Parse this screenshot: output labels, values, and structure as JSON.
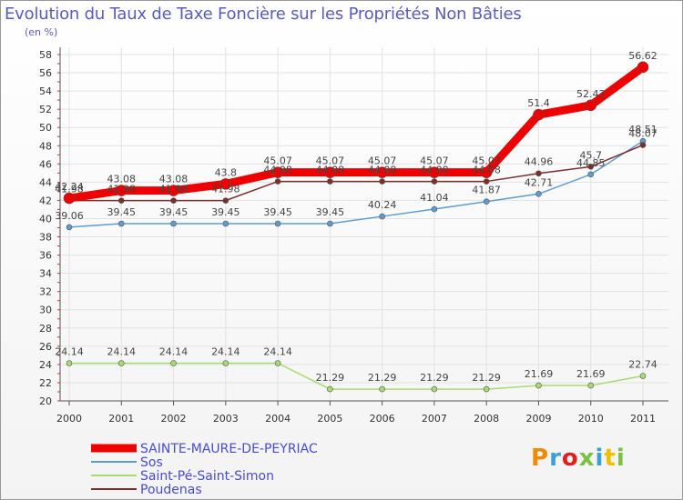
{
  "title": "Evolution du Taux de Taxe Foncière sur les Propriétés Non Bâties",
  "unit": "(en %)",
  "logo": {
    "text": "Proxiti",
    "colors": [
      "#f08a00",
      "#3aa0d8",
      "#e02020",
      "#7ac142",
      "#3aa0d8",
      "#f0c000",
      "#7ac142"
    ]
  },
  "chart_data": {
    "type": "line",
    "x": [
      "2000",
      "2001",
      "2002",
      "2003",
      "2004",
      "2005",
      "2006",
      "2007",
      "2008",
      "2009",
      "2010",
      "2011"
    ],
    "ylim": [
      20,
      58
    ],
    "yticks": [
      20,
      22,
      24,
      26,
      28,
      30,
      32,
      34,
      36,
      38,
      40,
      42,
      44,
      46,
      48,
      50,
      52,
      54,
      56,
      58
    ],
    "grid": true,
    "legend_position": "bottom-left",
    "series": [
      {
        "name": "SAINTE-MAURE-DE-PEYRIAC",
        "color": "#ee0000",
        "width": 9,
        "values": [
          42.24,
          43.08,
          43.08,
          43.8,
          45.07,
          45.07,
          45.07,
          45.07,
          45.07,
          51.4,
          52.43,
          56.62
        ],
        "labels": [
          "42.24",
          "43.08",
          "43.08",
          "43.8",
          "45.07",
          "45.07",
          "45.07",
          "45.07",
          "45.07",
          "51.4",
          "52.43",
          "56.62"
        ]
      },
      {
        "name": "Sos",
        "color": "#5e9ccf",
        "width": 1.5,
        "values": [
          39.06,
          39.45,
          39.45,
          39.45,
          39.45,
          39.45,
          40.24,
          41.04,
          41.87,
          42.71,
          44.85,
          48.51
        ],
        "labels": [
          "39.06",
          "39.45",
          "39.45",
          "39.45",
          "39.45",
          "39.45",
          "40.24",
          "41.04",
          "41.87",
          "42.71",
          "44.85",
          "48.51"
        ]
      },
      {
        "name": "Saint-Pé-Saint-Simon",
        "color": "#a6db70",
        "width": 1.5,
        "values": [
          24.14,
          24.14,
          24.14,
          24.14,
          24.14,
          21.29,
          21.29,
          21.29,
          21.29,
          21.69,
          21.69,
          22.74
        ],
        "labels": [
          "24.14",
          "24.14",
          "24.14",
          "24.14",
          "24.14",
          "21.29",
          "21.29",
          "21.29",
          "21.29",
          "21.69",
          "21.69",
          "22.74"
        ]
      },
      {
        "name": "Poudenas",
        "color": "#7a2e2e",
        "width": 1.5,
        "values": [
          41.98,
          41.98,
          41.98,
          41.98,
          44.08,
          44.08,
          44.08,
          44.08,
          44.08,
          44.96,
          45.7,
          48.07
        ],
        "labels": [
          "41.98",
          "41.98",
          "41.98",
          "41.98",
          "44.08",
          "44.08",
          "44.08",
          "44.08",
          "44.08",
          "44.96",
          "45.7",
          "48.07"
        ]
      }
    ]
  }
}
